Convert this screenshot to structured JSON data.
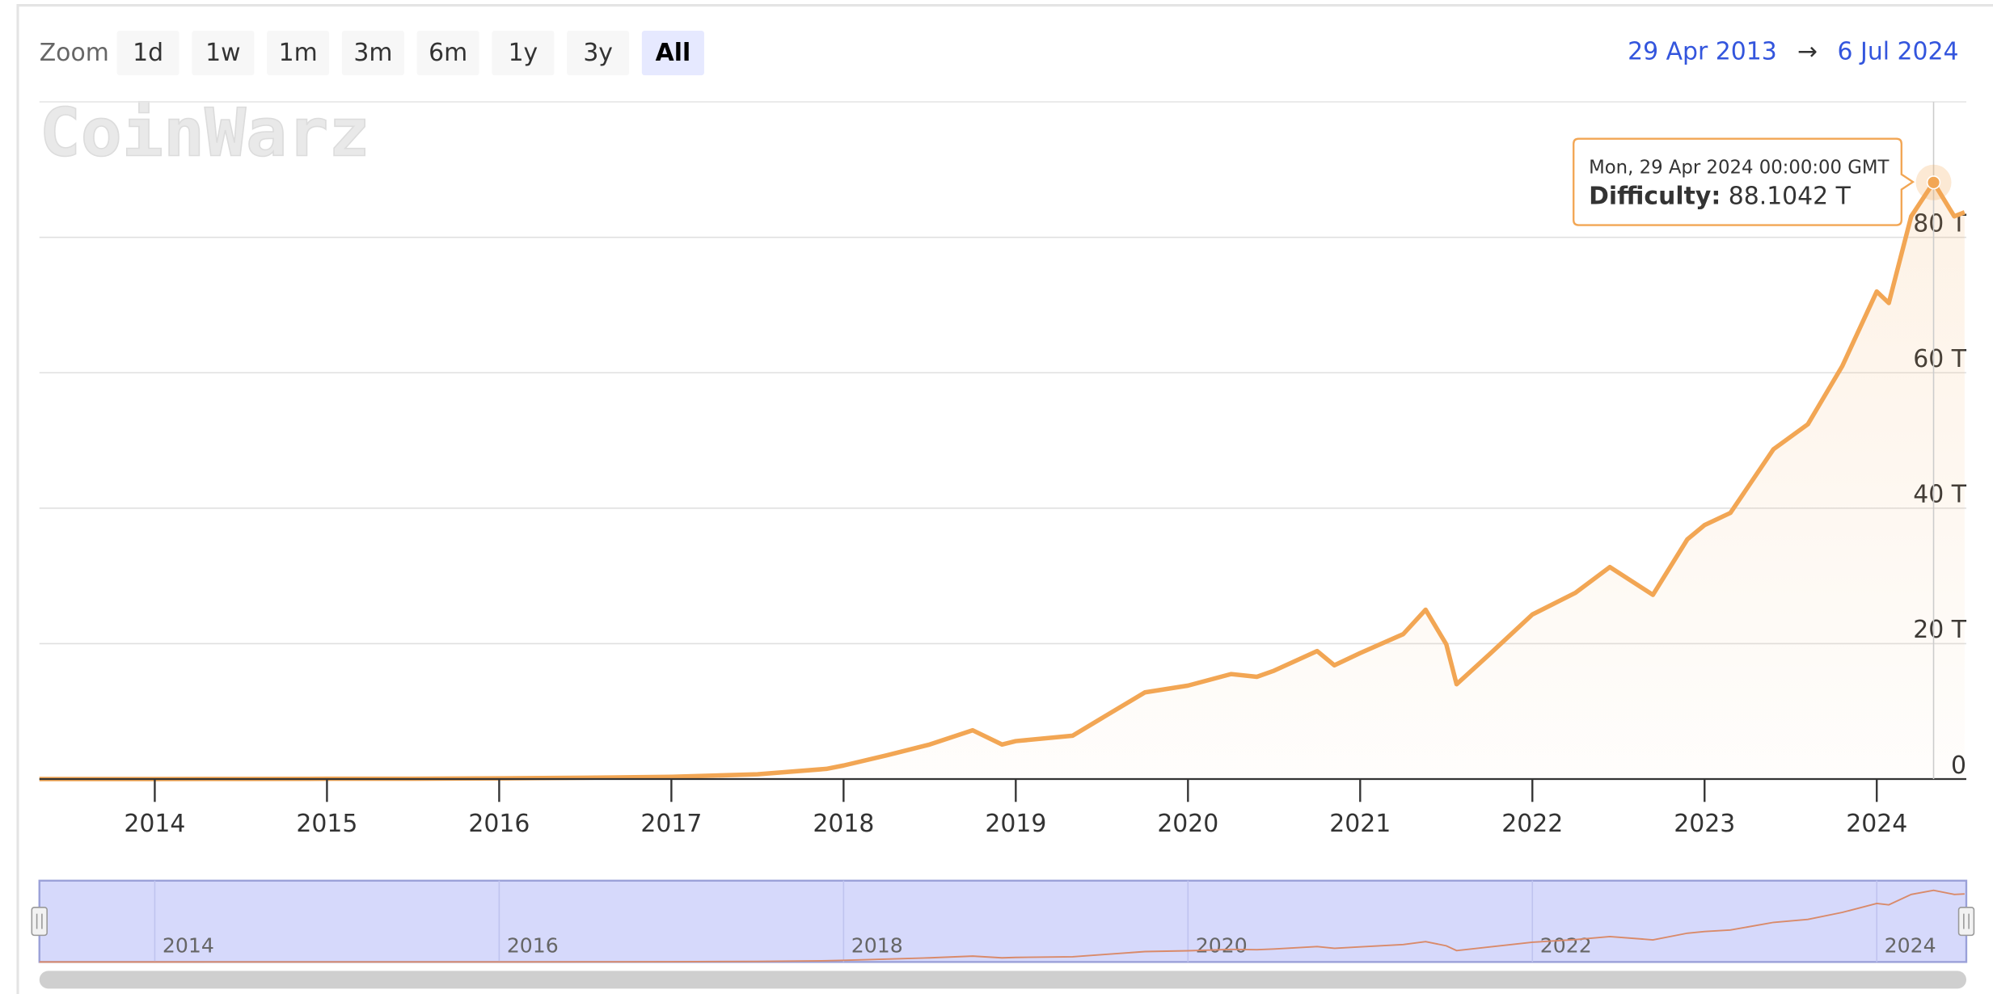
{
  "chart_data": {
    "type": "area",
    "color": "#f2a654",
    "x": [
      2013.33,
      2014.0,
      2014.5,
      2015.0,
      2015.5,
      2016.0,
      2016.5,
      2017.0,
      2017.5,
      2017.9,
      2018.0,
      2018.25,
      2018.5,
      2018.75,
      2018.92,
      2019.0,
      2019.33,
      2019.5,
      2019.75,
      2020.0,
      2020.25,
      2020.4,
      2020.5,
      2020.75,
      2020.85,
      2021.0,
      2021.25,
      2021.38,
      2021.5,
      2021.56,
      2021.75,
      2022.0,
      2022.25,
      2022.45,
      2022.7,
      2022.9,
      2023.0,
      2023.15,
      2023.4,
      2023.6,
      2023.8,
      2024.0,
      2024.07,
      2024.2,
      2024.33,
      2024.45,
      2024.51
    ],
    "values": [
      1e-05,
      0.0014,
      0.017,
      0.04,
      0.047,
      0.1,
      0.2,
      0.32,
      0.7,
      1.5,
      2.0,
      3.5,
      5.1,
      7.2,
      5.1,
      5.6,
      6.4,
      9.0,
      12.8,
      13.8,
      15.5,
      15.1,
      16.0,
      18.9,
      16.8,
      18.6,
      21.4,
      25.0,
      19.9,
      14.0,
      18.4,
      24.3,
      27.5,
      31.3,
      27.2,
      35.4,
      37.5,
      39.3,
      48.7,
      52.4,
      61.0,
      72.0,
      70.3,
      83.1,
      88.1042,
      83.1,
      83.7
    ],
    "xlim": [
      2013.33,
      2024.52
    ],
    "xticks": [
      2014,
      2015,
      2016,
      2017,
      2018,
      2019,
      2020,
      2021,
      2022,
      2023,
      2024
    ],
    "ylim": [
      0,
      100
    ],
    "yticks": [
      0,
      {
        "value": 20,
        "label": "20 T"
      },
      {
        "value": 40,
        "label": "40 T"
      },
      {
        "value": 60,
        "label": "60 T"
      },
      {
        "value": 80,
        "label": "80 T"
      }
    ],
    "grid": true,
    "zoom": {
      "label": "Zoom",
      "buttons": [
        "1d",
        "1w",
        "1m",
        "3m",
        "6m",
        "1y",
        "3y",
        "All"
      ],
      "selected": "All"
    },
    "range": {
      "from": "29 Apr 2013",
      "arrow": "→",
      "to": "6 Jul 2024"
    },
    "watermark": "CoinWarz",
    "tooltip": {
      "date": "Mon, 29 Apr 2024 00:00:00 GMT",
      "name": "Difficulty:",
      "x": 2024.33,
      "value": 88.1042,
      "value_label": "88.1042 T"
    },
    "navigator_xticks": [
      2014,
      2016,
      2018,
      2020,
      2022,
      2024
    ]
  }
}
